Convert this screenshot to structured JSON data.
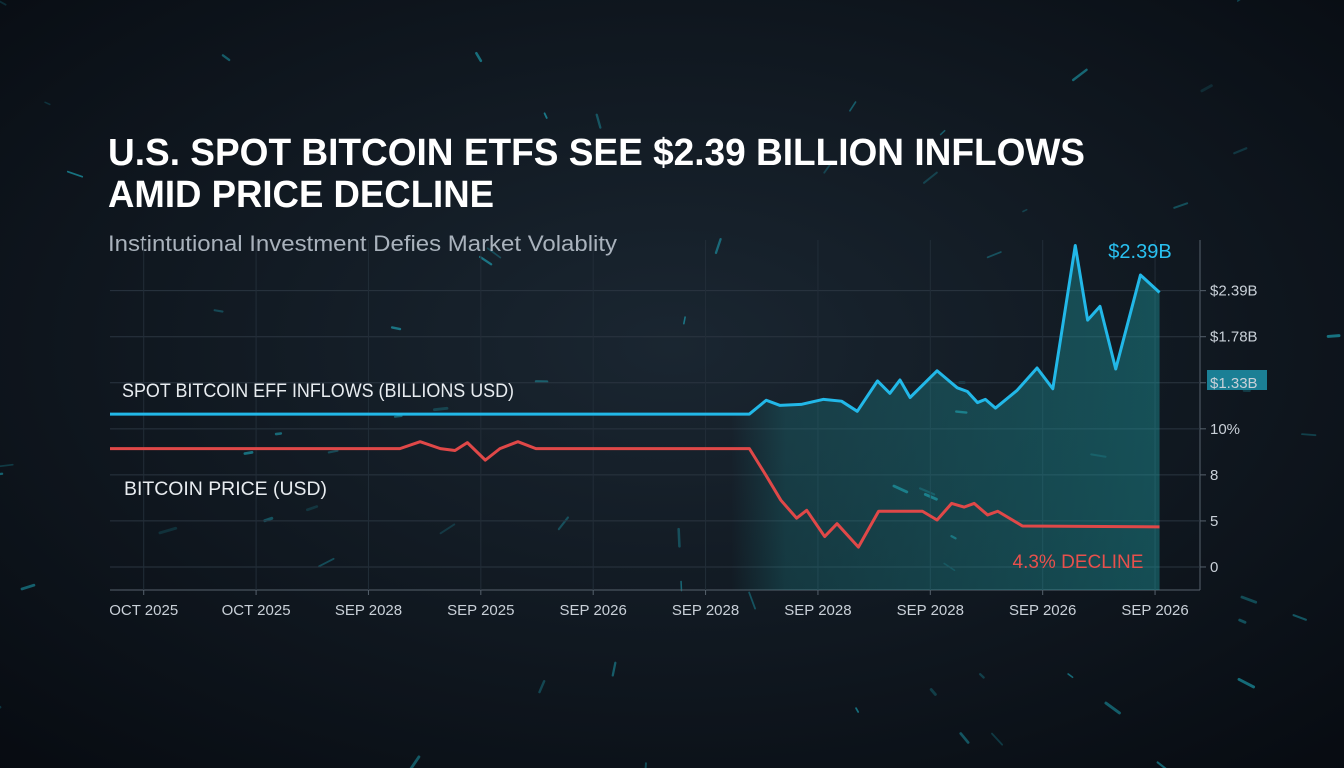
{
  "chart_data": {
    "type": "line",
    "title": [
      "U.S. SPOT BITCOIN ETFS SEE $2.39 BILLION INFLOWS",
      "AMID PRICE DECLINE"
    ],
    "subtitle": "Instintutional Investment Defies Market Volablity",
    "series": [
      {
        "name": "SPOT BITCOIN EFF INFLOWS (BILLIONS USD)",
        "color": "#22b8e8",
        "x": [
          -0.3,
          5.39,
          5.54,
          5.66,
          5.85,
          6.05,
          6.21,
          6.35,
          6.53,
          6.64,
          6.73,
          6.82,
          7.06,
          7.24,
          7.33,
          7.42,
          7.49,
          7.58,
          7.77,
          7.95,
          8.09,
          8.29,
          8.4,
          8.51,
          8.65,
          8.87,
          9.04
        ],
        "values": [
          3.32,
          3.32,
          3.62,
          3.51,
          3.53,
          3.64,
          3.6,
          3.38,
          4.04,
          3.77,
          4.06,
          3.68,
          4.26,
          3.89,
          3.81,
          3.57,
          3.64,
          3.45,
          3.83,
          4.32,
          3.87,
          6.98,
          5.36,
          5.66,
          4.3,
          6.34,
          5.96
        ]
      },
      {
        "name": "BITCOIN PRICE (USD)",
        "color": "#e04848",
        "x": [
          -0.3,
          2.28,
          2.46,
          2.64,
          2.77,
          2.88,
          3.04,
          3.17,
          3.33,
          3.49,
          5.39,
          5.54,
          5.67,
          5.81,
          5.9,
          6.06,
          6.17,
          6.36,
          6.54,
          6.93,
          7.06,
          7.19,
          7.3,
          7.39,
          7.51,
          7.6,
          7.82,
          9.04
        ],
        "values": [
          2.57,
          2.57,
          2.72,
          2.57,
          2.53,
          2.7,
          2.32,
          2.57,
          2.72,
          2.57,
          2.57,
          1.98,
          1.45,
          1.06,
          1.23,
          0.66,
          0.94,
          0.43,
          1.21,
          1.21,
          1.02,
          1.38,
          1.3,
          1.38,
          1.13,
          1.21,
          0.89,
          0.87
        ]
      }
    ],
    "xlim": [
      -0.3,
      9.4
    ],
    "xticks": [
      {
        "value": 0,
        "label": "OCT 2025"
      },
      {
        "value": 1,
        "label": "OCT 2025"
      },
      {
        "value": 2,
        "label": "SEP 2028"
      },
      {
        "value": 3,
        "label": "SEP 2025"
      },
      {
        "value": 4,
        "label": "SEP 2026"
      },
      {
        "value": 5,
        "label": "SEP 2028"
      },
      {
        "value": 6,
        "label": "SEP 2028"
      },
      {
        "value": 7,
        "label": "SEP 2028"
      },
      {
        "value": 8,
        "label": "SEP 2026"
      },
      {
        "value": 9,
        "label": "SEP 2026"
      }
    ],
    "ylim": [
      -0.5,
      7.1
    ],
    "yticks": [
      0,
      {
        "value": 1,
        "label": "5"
      },
      {
        "value": 2,
        "label": "8"
      },
      {
        "value": 3,
        "label": "10%"
      },
      {
        "value": 4,
        "label": "$1.33B"
      },
      {
        "value": 5,
        "label": "$1.78B"
      },
      {
        "value": 6,
        "label": "$2.39B"
      }
    ],
    "grid": true,
    "annotations": [
      {
        "text": "$2.39B",
        "color": "#29c0f0"
      },
      {
        "text": "4.3% DECLINE",
        "color": "#e8504c"
      }
    ]
  }
}
